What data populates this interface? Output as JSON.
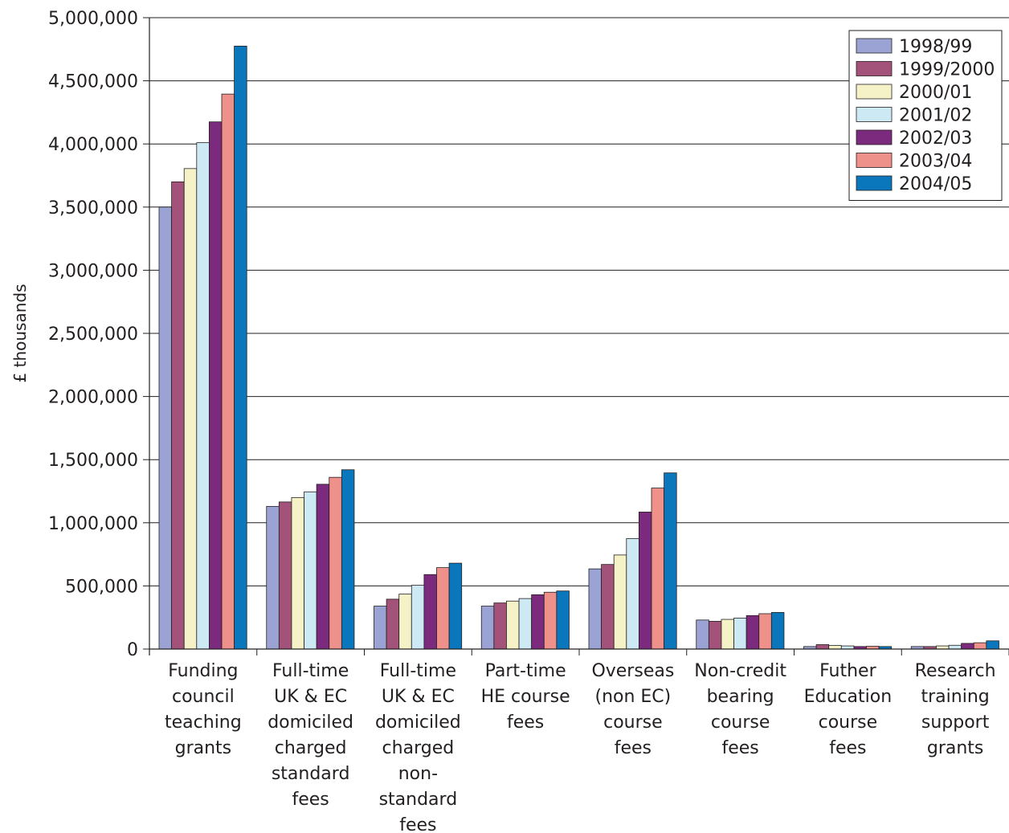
{
  "chart_data": {
    "type": "bar",
    "title": "",
    "xlabel": "",
    "ylabel": "£ thousands",
    "ylim": [
      0,
      5000000
    ],
    "yticks": [
      0,
      500000,
      1000000,
      1500000,
      2000000,
      2500000,
      3000000,
      3500000,
      4000000,
      4500000,
      5000000
    ],
    "ytick_labels": [
      "0",
      "500,000",
      "1,000,000",
      "1,500,000",
      "2,000,000",
      "2,500,000",
      "3,000,000",
      "3,500,000",
      "4,000,000",
      "4,500,000",
      "5,000,000"
    ],
    "grid": true,
    "legend_position": "top-right",
    "categories": [
      [
        "Funding",
        "council",
        "teaching",
        "grants"
      ],
      [
        "Full-time",
        "UK & EC",
        "domiciled",
        "charged",
        "standard",
        "fees"
      ],
      [
        "Full-time",
        "UK & EC",
        "domiciled",
        "charged",
        "non-",
        "standard",
        "fees"
      ],
      [
        "Part-time",
        "HE course",
        "fees"
      ],
      [
        "Overseas",
        "(non EC)",
        "course",
        "fees"
      ],
      [
        "Non-credit",
        "bearing",
        "course",
        "fees"
      ],
      [
        "Futher",
        "Education",
        "course",
        "fees"
      ],
      [
        "Research",
        "training",
        "support",
        "grants"
      ]
    ],
    "series": [
      {
        "name": "1998/99",
        "color": "#9aa3d3",
        "values": [
          3500000,
          1130000,
          340000,
          340000,
          635000,
          230000,
          20000,
          20000
        ]
      },
      {
        "name": "1999/2000",
        "color": "#a3527a",
        "values": [
          3700000,
          1165000,
          395000,
          365000,
          670000,
          220000,
          35000,
          20000
        ]
      },
      {
        "name": "2000/01",
        "color": "#f5f2c8",
        "values": [
          3805000,
          1200000,
          435000,
          380000,
          745000,
          235000,
          28000,
          25000
        ]
      },
      {
        "name": "2001/02",
        "color": "#cde9f4",
        "values": [
          4010000,
          1245000,
          505000,
          400000,
          875000,
          245000,
          25000,
          30000
        ]
      },
      {
        "name": "2002/03",
        "color": "#7c2a7d",
        "values": [
          4175000,
          1305000,
          590000,
          430000,
          1085000,
          265000,
          20000,
          45000
        ]
      },
      {
        "name": "2003/04",
        "color": "#ef918b",
        "values": [
          4395000,
          1360000,
          645000,
          450000,
          1275000,
          280000,
          22000,
          50000
        ]
      },
      {
        "name": "2004/05",
        "color": "#0a77bd",
        "values": [
          4775000,
          1420000,
          680000,
          460000,
          1395000,
          290000,
          20000,
          65000
        ]
      }
    ]
  }
}
